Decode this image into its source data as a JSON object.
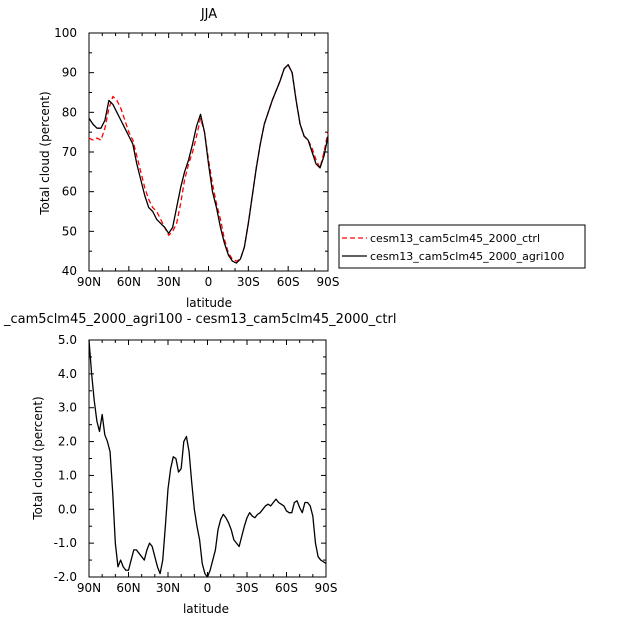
{
  "chart_data": [
    {
      "type": "line",
      "title": "JJA",
      "xlabel": "latitude",
      "ylabel": "Total cloud (percent)",
      "xlim": [
        90,
        -90
      ],
      "ylim": [
        40,
        100
      ],
      "xticks": [
        90,
        60,
        30,
        0,
        -30,
        -60,
        -90
      ],
      "xtick_labels": [
        "90N",
        "60N",
        "30N",
        "0",
        "30S",
        "60S",
        "90S"
      ],
      "yticks": [
        40,
        50,
        60,
        70,
        80,
        90,
        100
      ],
      "ytick_labels": [
        "40",
        "50",
        "60",
        "70",
        "80",
        "90",
        "100"
      ],
      "grid": false,
      "legend": "right",
      "series": [
        {
          "name": "cesm13_cam5clm45_2000_ctrl",
          "color": "#ff0000",
          "dash": "dashed",
          "x": [
            90,
            87,
            84,
            81,
            78,
            75,
            72,
            69,
            66,
            63,
            60,
            57,
            54,
            51,
            48,
            45,
            42,
            39,
            36,
            33,
            30,
            27,
            24,
            21,
            18,
            15,
            12,
            9,
            6,
            3,
            0,
            -3,
            -6,
            -9,
            -12,
            -15,
            -18,
            -21,
            -24,
            -27,
            -30,
            -33,
            -36,
            -39,
            -42,
            -45,
            -48,
            -51,
            -54,
            -57,
            -60,
            -63,
            -66,
            -69,
            -72,
            -75,
            -78,
            -81,
            -84,
            -87,
            -90
          ],
          "y": [
            73.5,
            73,
            73.5,
            73,
            76,
            81,
            84,
            83,
            81,
            78,
            75,
            73,
            69,
            65,
            61,
            58,
            56,
            55,
            53,
            51,
            49,
            50,
            52,
            57,
            63,
            67,
            70,
            74,
            78.5,
            75,
            68,
            62,
            57,
            53,
            48,
            44.5,
            43,
            42.5,
            43,
            46,
            52,
            59,
            66,
            72,
            77,
            80,
            83,
            85.5,
            88,
            91,
            92,
            90,
            83,
            77,
            74,
            73,
            71,
            68,
            66,
            70,
            75
          ]
        },
        {
          "name": "cesm13_cam5clm45_2000_agri100",
          "color": "#000000",
          "dash": "solid",
          "x": [
            90,
            87,
            84,
            81,
            78,
            75,
            72,
            69,
            66,
            63,
            60,
            57,
            54,
            51,
            48,
            45,
            42,
            39,
            36,
            33,
            30,
            27,
            24,
            21,
            18,
            15,
            12,
            9,
            6,
            3,
            0,
            -3,
            -6,
            -9,
            -12,
            -15,
            -18,
            -21,
            -24,
            -27,
            -30,
            -33,
            -36,
            -39,
            -42,
            -45,
            -48,
            -51,
            -54,
            -57,
            -60,
            -63,
            -66,
            -69,
            -72,
            -75,
            -78,
            -81,
            -84,
            -87,
            -90
          ],
          "y": [
            78.5,
            77,
            76,
            76,
            78,
            83,
            82,
            80,
            78,
            76,
            74,
            72,
            67,
            63,
            59,
            56,
            55,
            53,
            52,
            51,
            49.5,
            51,
            56,
            61,
            65,
            68,
            72,
            76.5,
            79.5,
            75,
            67,
            60,
            56,
            51,
            47,
            44,
            42.5,
            42,
            43,
            46,
            52,
            59,
            66,
            72,
            77,
            80,
            83,
            85.5,
            88,
            91,
            92,
            90,
            83,
            77,
            74,
            73,
            70,
            67,
            66,
            69,
            74
          ]
        }
      ]
    },
    {
      "type": "line",
      "title": "_cam5clm45_2000_agri100 - cesm13_cam5clm45_2000_ctrl",
      "xlabel": "latitude",
      "ylabel": "Total cloud (percent)",
      "xlim": [
        90,
        -90
      ],
      "ylim": [
        -2,
        5
      ],
      "xticks": [
        90,
        60,
        30,
        0,
        -30,
        -60,
        -90
      ],
      "xtick_labels": [
        "90N",
        "60N",
        "30N",
        "0",
        "30S",
        "60S",
        "90S"
      ],
      "yticks": [
        -2,
        -1,
        0,
        1,
        2,
        3,
        4,
        5
      ],
      "ytick_labels": [
        "-2.0",
        "-1.0",
        "0.0",
        "1.0",
        "2.0",
        "3.0",
        "4.0",
        "5.0"
      ],
      "grid": false,
      "series": [
        {
          "color": "#000000",
          "dash": "solid",
          "x": [
            90,
            88,
            86,
            84,
            82,
            80,
            78,
            76,
            74,
            72,
            70,
            68,
            66,
            64,
            62,
            60,
            58,
            56,
            54,
            52,
            50,
            48,
            46,
            44,
            42,
            40,
            38,
            36,
            34,
            32,
            30,
            28,
            26,
            24,
            22,
            20,
            18,
            16,
            14,
            12,
            10,
            8,
            6,
            4,
            2,
            0,
            -2,
            -4,
            -6,
            -8,
            -10,
            -12,
            -14,
            -16,
            -18,
            -20,
            -22,
            -24,
            -26,
            -28,
            -30,
            -32,
            -34,
            -36,
            -38,
            -40,
            -42,
            -44,
            -46,
            -48,
            -50,
            -52,
            -54,
            -56,
            -58,
            -60,
            -62,
            -64,
            -66,
            -68,
            -70,
            -72,
            -74,
            -76,
            -78,
            -80,
            -82,
            -84,
            -86,
            -88,
            -90
          ],
          "y": [
            5.0,
            4.0,
            3.2,
            2.6,
            2.3,
            2.8,
            2.2,
            2.0,
            1.7,
            0.5,
            -1.0,
            -1.7,
            -1.5,
            -1.7,
            -1.8,
            -1.8,
            -1.5,
            -1.2,
            -1.2,
            -1.3,
            -1.4,
            -1.5,
            -1.2,
            -1.0,
            -1.1,
            -1.4,
            -1.7,
            -1.9,
            -1.5,
            -0.5,
            0.6,
            1.2,
            1.55,
            1.5,
            1.1,
            1.2,
            2.0,
            2.15,
            1.7,
            0.8,
            0.0,
            -0.5,
            -0.9,
            -1.6,
            -1.9,
            -2.0,
            -1.8,
            -1.5,
            -1.2,
            -0.6,
            -0.3,
            -0.15,
            -0.25,
            -0.4,
            -0.6,
            -0.9,
            -1.0,
            -1.1,
            -0.8,
            -0.5,
            -0.25,
            -0.1,
            -0.2,
            -0.25,
            -0.15,
            -0.1,
            0.0,
            0.1,
            0.15,
            0.1,
            0.2,
            0.3,
            0.2,
            0.15,
            0.1,
            -0.05,
            -0.1,
            -0.1,
            0.2,
            0.25,
            0.05,
            -0.1,
            0.2,
            0.2,
            0.1,
            -0.2,
            -1.0,
            -1.4,
            -1.5,
            -1.55,
            -1.6
          ]
        }
      ]
    }
  ]
}
